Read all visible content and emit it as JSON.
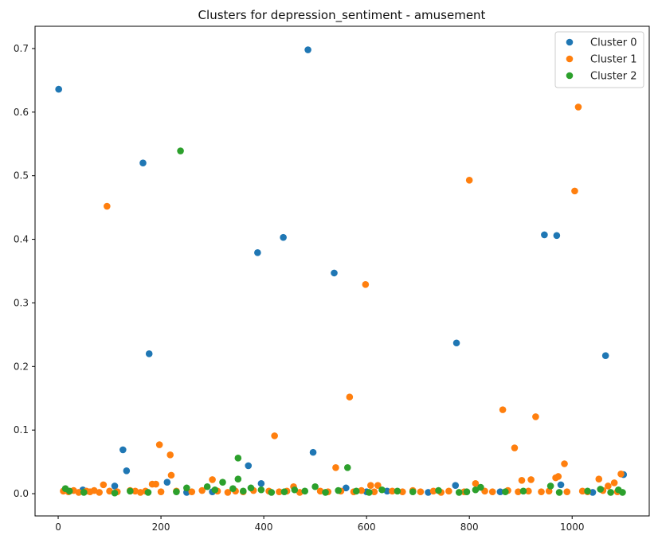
{
  "chart_data": {
    "type": "scatter",
    "title": "Clusters for depression_sentiment - amusement",
    "xlabel": "",
    "ylabel": "",
    "xlim": [
      -45,
      1150
    ],
    "ylim": [
      -0.035,
      0.735
    ],
    "x_ticks": [
      0,
      200,
      400,
      600,
      800,
      1000
    ],
    "y_ticks": [
      0.0,
      0.1,
      0.2,
      0.3,
      0.4,
      0.5,
      0.6,
      0.7
    ],
    "x_tick_labels": [
      "0",
      "200",
      "400",
      "600",
      "800",
      "1000"
    ],
    "y_tick_labels": [
      "0.0",
      "0.1",
      "0.2",
      "0.3",
      "0.4",
      "0.5",
      "0.6",
      "0.7"
    ],
    "grid": false,
    "legend_position": "top-right",
    "series": [
      {
        "name": "Cluster 0",
        "color": "#1f77b4",
        "points": [
          [
            1,
            0.636
          ],
          [
            165,
            0.52
          ],
          [
            177,
            0.22
          ],
          [
            126,
            0.069
          ],
          [
            133,
            0.036
          ],
          [
            110,
            0.012
          ],
          [
            48,
            0.006
          ],
          [
            212,
            0.018
          ],
          [
            388,
            0.379
          ],
          [
            438,
            0.403
          ],
          [
            486,
            0.698
          ],
          [
            537,
            0.347
          ],
          [
            496,
            0.065
          ],
          [
            370,
            0.044
          ],
          [
            395,
            0.016
          ],
          [
            560,
            0.009
          ],
          [
            775,
            0.237
          ],
          [
            773,
            0.013
          ],
          [
            946,
            0.407
          ],
          [
            970,
            0.406
          ],
          [
            1065,
            0.217
          ],
          [
            1100,
            0.03
          ],
          [
            978,
            0.014
          ],
          [
            640,
            0.004
          ],
          [
            300,
            0.003
          ],
          [
            720,
            0.002
          ],
          [
            860,
            0.003
          ],
          [
            1040,
            0.002
          ],
          [
            250,
            0.002
          ],
          [
            600,
            0.003
          ]
        ]
      },
      {
        "name": "Cluster 1",
        "color": "#ff7f0e",
        "points": [
          [
            95,
            0.452
          ],
          [
            197,
            0.077
          ],
          [
            218,
            0.061
          ],
          [
            220,
            0.029
          ],
          [
            88,
            0.014
          ],
          [
            183,
            0.015
          ],
          [
            190,
            0.015
          ],
          [
            300,
            0.022
          ],
          [
            421,
            0.091
          ],
          [
            567,
            0.152
          ],
          [
            598,
            0.329
          ],
          [
            540,
            0.041
          ],
          [
            458,
            0.011
          ],
          [
            608,
            0.013
          ],
          [
            622,
            0.013
          ],
          [
            800,
            0.493
          ],
          [
            812,
            0.016
          ],
          [
            865,
            0.132
          ],
          [
            888,
            0.072
          ],
          [
            929,
            0.121
          ],
          [
            902,
            0.021
          ],
          [
            920,
            0.022
          ],
          [
            985,
            0.047
          ],
          [
            968,
            0.025
          ],
          [
            973,
            0.027
          ],
          [
            1005,
            0.476
          ],
          [
            1012,
            0.608
          ],
          [
            1052,
            0.023
          ],
          [
            1070,
            0.012
          ],
          [
            1082,
            0.017
          ],
          [
            1095,
            0.031
          ],
          [
            10,
            0.004
          ],
          [
            20,
            0.003
          ],
          [
            30,
            0.005
          ],
          [
            40,
            0.002
          ],
          [
            55,
            0.004
          ],
          [
            62,
            0.003
          ],
          [
            70,
            0.005
          ],
          [
            80,
            0.002
          ],
          [
            100,
            0.004
          ],
          [
            115,
            0.003
          ],
          [
            140,
            0.005
          ],
          [
            150,
            0.004
          ],
          [
            160,
            0.002
          ],
          [
            170,
            0.004
          ],
          [
            200,
            0.003
          ],
          [
            230,
            0.004
          ],
          [
            260,
            0.003
          ],
          [
            280,
            0.005
          ],
          [
            310,
            0.004
          ],
          [
            330,
            0.002
          ],
          [
            345,
            0.004
          ],
          [
            360,
            0.003
          ],
          [
            380,
            0.005
          ],
          [
            410,
            0.004
          ],
          [
            430,
            0.003
          ],
          [
            445,
            0.004
          ],
          [
            470,
            0.002
          ],
          [
            510,
            0.004
          ],
          [
            525,
            0.003
          ],
          [
            550,
            0.004
          ],
          [
            575,
            0.003
          ],
          [
            590,
            0.005
          ],
          [
            615,
            0.003
          ],
          [
            650,
            0.004
          ],
          [
            670,
            0.003
          ],
          [
            690,
            0.005
          ],
          [
            705,
            0.003
          ],
          [
            730,
            0.004
          ],
          [
            745,
            0.002
          ],
          [
            760,
            0.004
          ],
          [
            790,
            0.003
          ],
          [
            830,
            0.004
          ],
          [
            845,
            0.003
          ],
          [
            875,
            0.005
          ],
          [
            895,
            0.003
          ],
          [
            915,
            0.004
          ],
          [
            940,
            0.003
          ],
          [
            955,
            0.004
          ],
          [
            990,
            0.003
          ],
          [
            1020,
            0.004
          ],
          [
            1030,
            0.003
          ],
          [
            1060,
            0.005
          ],
          [
            1088,
            0.003
          ]
        ]
      },
      {
        "name": "Cluster 2",
        "color": "#2ca02c",
        "points": [
          [
            238,
            0.539
          ],
          [
            350,
            0.056
          ],
          [
            350,
            0.023
          ],
          [
            563,
            0.041
          ],
          [
            320,
            0.018
          ],
          [
            14,
            0.008
          ],
          [
            22,
            0.004
          ],
          [
            50,
            0.002
          ],
          [
            110,
            0.001
          ],
          [
            140,
            0.004
          ],
          [
            175,
            0.002
          ],
          [
            230,
            0.003
          ],
          [
            250,
            0.009
          ],
          [
            290,
            0.011
          ],
          [
            305,
            0.006
          ],
          [
            340,
            0.008
          ],
          [
            360,
            0.004
          ],
          [
            375,
            0.009
          ],
          [
            395,
            0.006
          ],
          [
            415,
            0.002
          ],
          [
            440,
            0.003
          ],
          [
            460,
            0.006
          ],
          [
            480,
            0.004
          ],
          [
            500,
            0.011
          ],
          [
            520,
            0.002
          ],
          [
            545,
            0.005
          ],
          [
            580,
            0.004
          ],
          [
            605,
            0.002
          ],
          [
            630,
            0.006
          ],
          [
            660,
            0.004
          ],
          [
            690,
            0.003
          ],
          [
            740,
            0.005
          ],
          [
            780,
            0.002
          ],
          [
            795,
            0.003
          ],
          [
            812,
            0.006
          ],
          [
            822,
            0.01
          ],
          [
            870,
            0.003
          ],
          [
            905,
            0.004
          ],
          [
            958,
            0.012
          ],
          [
            975,
            0.002
          ],
          [
            1030,
            0.004
          ],
          [
            1055,
            0.007
          ],
          [
            1075,
            0.002
          ],
          [
            1090,
            0.006
          ],
          [
            1098,
            0.002
          ]
        ]
      }
    ]
  }
}
